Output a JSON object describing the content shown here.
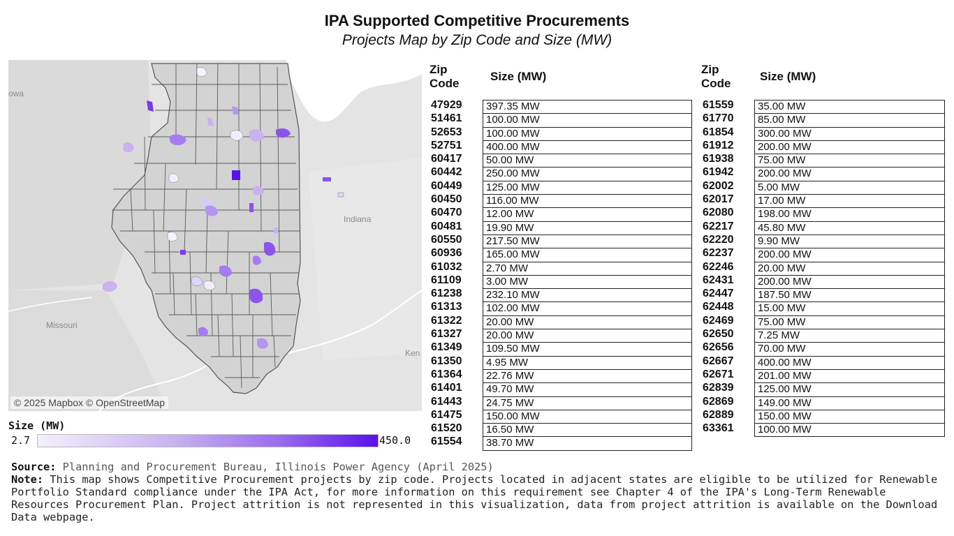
{
  "title": "IPA Supported Competitive Procurements",
  "subtitle": "Projects Map by Zip Code and Size (MW)",
  "map": {
    "attribution": "© 2025 Mapbox © OpenStreetMap",
    "labels": {
      "iowa": "owa",
      "indiana": "Indiana",
      "missouri": "Missouri",
      "kentucky": "Ken"
    }
  },
  "legend": {
    "title": "Size (MW)",
    "min": "2.7",
    "max": "450.0",
    "color_low": "#f3f0fb",
    "color_high": "#5a12e8"
  },
  "table": {
    "zip_header": "Zip\nCode",
    "size_header": "Size (MW)",
    "left": [
      {
        "zip": "47929",
        "size": "397.35 MW"
      },
      {
        "zip": "51461",
        "size": "100.00 MW"
      },
      {
        "zip": "52653",
        "size": "100.00 MW"
      },
      {
        "zip": "52751",
        "size": "400.00 MW"
      },
      {
        "zip": "60417",
        "size": "50.00 MW"
      },
      {
        "zip": "60442",
        "size": "250.00 MW"
      },
      {
        "zip": "60449",
        "size": "125.00 MW"
      },
      {
        "zip": "60450",
        "size": "116.00 MW"
      },
      {
        "zip": "60470",
        "size": "12.00 MW"
      },
      {
        "zip": "60481",
        "size": "19.90 MW"
      },
      {
        "zip": "60550",
        "size": "217.50 MW"
      },
      {
        "zip": "60936",
        "size": "165.00 MW"
      },
      {
        "zip": "61032",
        "size": "2.70 MW"
      },
      {
        "zip": "61109",
        "size": "3.00 MW"
      },
      {
        "zip": "61238",
        "size": "232.10 MW"
      },
      {
        "zip": "61313",
        "size": "102.00 MW"
      },
      {
        "zip": "61322",
        "size": "20.00 MW"
      },
      {
        "zip": "61327",
        "size": "20.00 MW"
      },
      {
        "zip": "61349",
        "size": "109.50 MW"
      },
      {
        "zip": "61350",
        "size": "4.95 MW"
      },
      {
        "zip": "61364",
        "size": "22.76 MW"
      },
      {
        "zip": "61401",
        "size": "49.70 MW"
      },
      {
        "zip": "61443",
        "size": "24.75 MW"
      },
      {
        "zip": "61475",
        "size": "150.00 MW"
      },
      {
        "zip": "61520",
        "size": "16.50 MW"
      },
      {
        "zip": "61554",
        "size": "38.70 MW"
      }
    ],
    "right": [
      {
        "zip": "61559",
        "size": "35.00 MW"
      },
      {
        "zip": "61770",
        "size": "85.00 MW"
      },
      {
        "zip": "61854",
        "size": "300.00 MW"
      },
      {
        "zip": "61912",
        "size": "200.00 MW"
      },
      {
        "zip": "61938",
        "size": "75.00 MW"
      },
      {
        "zip": "61942",
        "size": "200.00 MW"
      },
      {
        "zip": "62002",
        "size": "5.00 MW"
      },
      {
        "zip": "62017",
        "size": "17.00 MW"
      },
      {
        "zip": "62080",
        "size": "198.00 MW"
      },
      {
        "zip": "62217",
        "size": "45.80 MW"
      },
      {
        "zip": "62220",
        "size": "9.90 MW"
      },
      {
        "zip": "62237",
        "size": "200.00 MW"
      },
      {
        "zip": "62246",
        "size": "20.00 MW"
      },
      {
        "zip": "62431",
        "size": "200.00 MW"
      },
      {
        "zip": "62447",
        "size": "187.50 MW"
      },
      {
        "zip": "62448",
        "size": "15.00 MW"
      },
      {
        "zip": "62469",
        "size": "75.00 MW"
      },
      {
        "zip": "62650",
        "size": "7.25 MW"
      },
      {
        "zip": "62656",
        "size": "70.00 MW"
      },
      {
        "zip": "62667",
        "size": "400.00 MW"
      },
      {
        "zip": "62671",
        "size": "201.00 MW"
      },
      {
        "zip": "62839",
        "size": "125.00 MW"
      },
      {
        "zip": "62869",
        "size": "149.00 MW"
      },
      {
        "zip": "62889",
        "size": "150.00 MW"
      },
      {
        "zip": "63361",
        "size": "100.00 MW"
      }
    ]
  },
  "footer": {
    "source_label": "Source:",
    "source_text": " Planning and Procurement Bureau, Illinois Power Agency (April 2025)",
    "note_label": "Note:",
    "note_text": " This map shows Competitive Procurement projects by zip code. Projects located in adjacent states are eligible to be utilized for Renewable Portfolio Standard compliance under the IPA Act, for more information on this requirement see Chapter 4 of the IPA's Long-Term Renewable Resources Procurement Plan. Project attrition is not represented in this visualization, data from project attrition is available on the Download Data webpage."
  }
}
